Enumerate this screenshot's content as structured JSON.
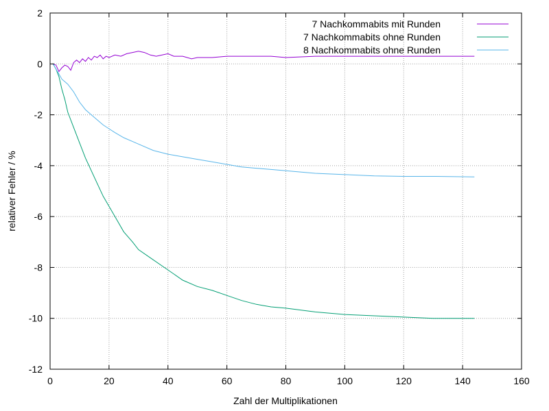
{
  "chart_data": {
    "type": "line",
    "xlabel": "Zahl der Multiplikationen",
    "ylabel": "relativer Fehler / %",
    "xlim": [
      0,
      160
    ],
    "ylim": [
      -12,
      2
    ],
    "xticks": [
      0,
      20,
      40,
      60,
      80,
      100,
      120,
      140,
      160
    ],
    "yticks": [
      2,
      0,
      -2,
      -4,
      -6,
      -8,
      -10,
      -12
    ],
    "grid": true,
    "legend_position": "top-right",
    "series": [
      {
        "name": "7 Nachkommabits mit Runden",
        "color": "#9400d3",
        "x": [
          1,
          2,
          3,
          4,
          5,
          6,
          7,
          8,
          9,
          10,
          11,
          12,
          13,
          14,
          15,
          16,
          17,
          18,
          19,
          20,
          22,
          24,
          26,
          28,
          30,
          32,
          34,
          36,
          38,
          40,
          42,
          45,
          48,
          50,
          55,
          60,
          65,
          70,
          75,
          80,
          90,
          100,
          110,
          120,
          130,
          144
        ],
        "y": [
          0,
          -0.05,
          -0.3,
          -0.15,
          -0.05,
          -0.1,
          -0.25,
          0.05,
          0.15,
          0.05,
          0.2,
          0.1,
          0.25,
          0.15,
          0.3,
          0.25,
          0.35,
          0.2,
          0.3,
          0.25,
          0.35,
          0.3,
          0.4,
          0.45,
          0.5,
          0.45,
          0.35,
          0.3,
          0.35,
          0.4,
          0.3,
          0.3,
          0.2,
          0.25,
          0.25,
          0.3,
          0.3,
          0.3,
          0.3,
          0.25,
          0.3,
          0.3,
          0.3,
          0.3,
          0.3,
          0.3
        ]
      },
      {
        "name": "7 Nachkommabits ohne Runden",
        "color": "#009e73",
        "x": [
          1,
          2,
          3,
          4,
          5,
          6,
          8,
          10,
          12,
          14,
          16,
          18,
          20,
          22,
          25,
          28,
          30,
          35,
          40,
          45,
          50,
          55,
          60,
          65,
          70,
          75,
          80,
          90,
          100,
          110,
          120,
          130,
          144
        ],
        "y": [
          0,
          -0.2,
          -0.5,
          -1.0,
          -1.4,
          -1.9,
          -2.5,
          -3.1,
          -3.7,
          -4.2,
          -4.7,
          -5.2,
          -5.6,
          -6.0,
          -6.6,
          -7.0,
          -7.3,
          -7.7,
          -8.1,
          -8.5,
          -8.75,
          -8.9,
          -9.1,
          -9.3,
          -9.45,
          -9.55,
          -9.6,
          -9.75,
          -9.85,
          -9.9,
          -9.95,
          -10.0,
          -10.0
        ]
      },
      {
        "name": "8 Nachkommabits ohne Runden",
        "color": "#56b4e9",
        "x": [
          1,
          2,
          3,
          4,
          5,
          6,
          8,
          10,
          12,
          14,
          16,
          18,
          20,
          22,
          25,
          28,
          30,
          35,
          40,
          45,
          50,
          55,
          60,
          65,
          70,
          75,
          80,
          90,
          100,
          110,
          120,
          130,
          144
        ],
        "y": [
          0,
          -0.2,
          -0.4,
          -0.6,
          -0.7,
          -0.8,
          -1.1,
          -1.5,
          -1.8,
          -2.0,
          -2.2,
          -2.4,
          -2.55,
          -2.7,
          -2.9,
          -3.05,
          -3.15,
          -3.4,
          -3.55,
          -3.65,
          -3.75,
          -3.85,
          -3.95,
          -4.05,
          -4.1,
          -4.15,
          -4.2,
          -4.3,
          -4.35,
          -4.4,
          -4.42,
          -4.42,
          -4.44
        ]
      }
    ]
  }
}
